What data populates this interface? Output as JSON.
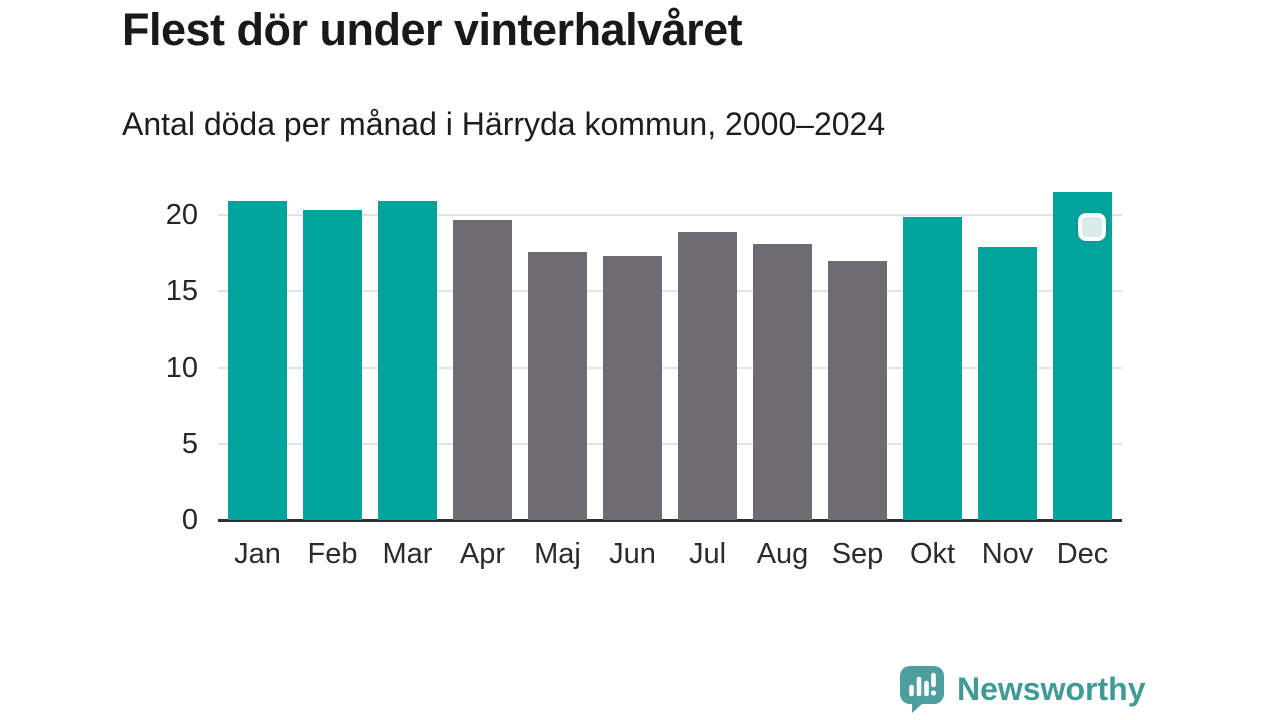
{
  "header": {
    "title": "Flest dör under vinterhalvåret",
    "subtitle": "Antal döda per månad i Härryda kommun, 2000–2024"
  },
  "chart_data": {
    "type": "bar",
    "title": "Flest dör under vinterhalvåret",
    "subtitle": "Antal döda per månad i Härryda kommun, 2000–2024",
    "categories": [
      "Jan",
      "Feb",
      "Mar",
      "Apr",
      "Maj",
      "Jun",
      "Jul",
      "Aug",
      "Sep",
      "Okt",
      "Nov",
      "Dec"
    ],
    "values": [
      20.9,
      20.3,
      20.9,
      19.7,
      17.6,
      17.3,
      18.9,
      18.1,
      17.0,
      19.9,
      17.9,
      21.5
    ],
    "highlighted": [
      true,
      true,
      true,
      false,
      false,
      false,
      false,
      false,
      false,
      true,
      true,
      true
    ],
    "highlight_meaning": "winter half-year months (teal), summer months gray",
    "xlabel": "",
    "ylabel": "",
    "ylim": [
      0,
      22
    ],
    "yticks": [
      0,
      5,
      10,
      15,
      20
    ],
    "grid": true,
    "legend": "none",
    "marker_on_category": "Dec"
  },
  "colors": {
    "highlight": "#00a49c",
    "base": "#6e6c72",
    "grid": "#e3e3e3",
    "axis": "#2e2e2e",
    "marker": "#d9eceb",
    "brand": "#3f9a98",
    "brand_bubble": "#4d9f9d"
  },
  "footer": {
    "brand": "Newsworthy"
  }
}
